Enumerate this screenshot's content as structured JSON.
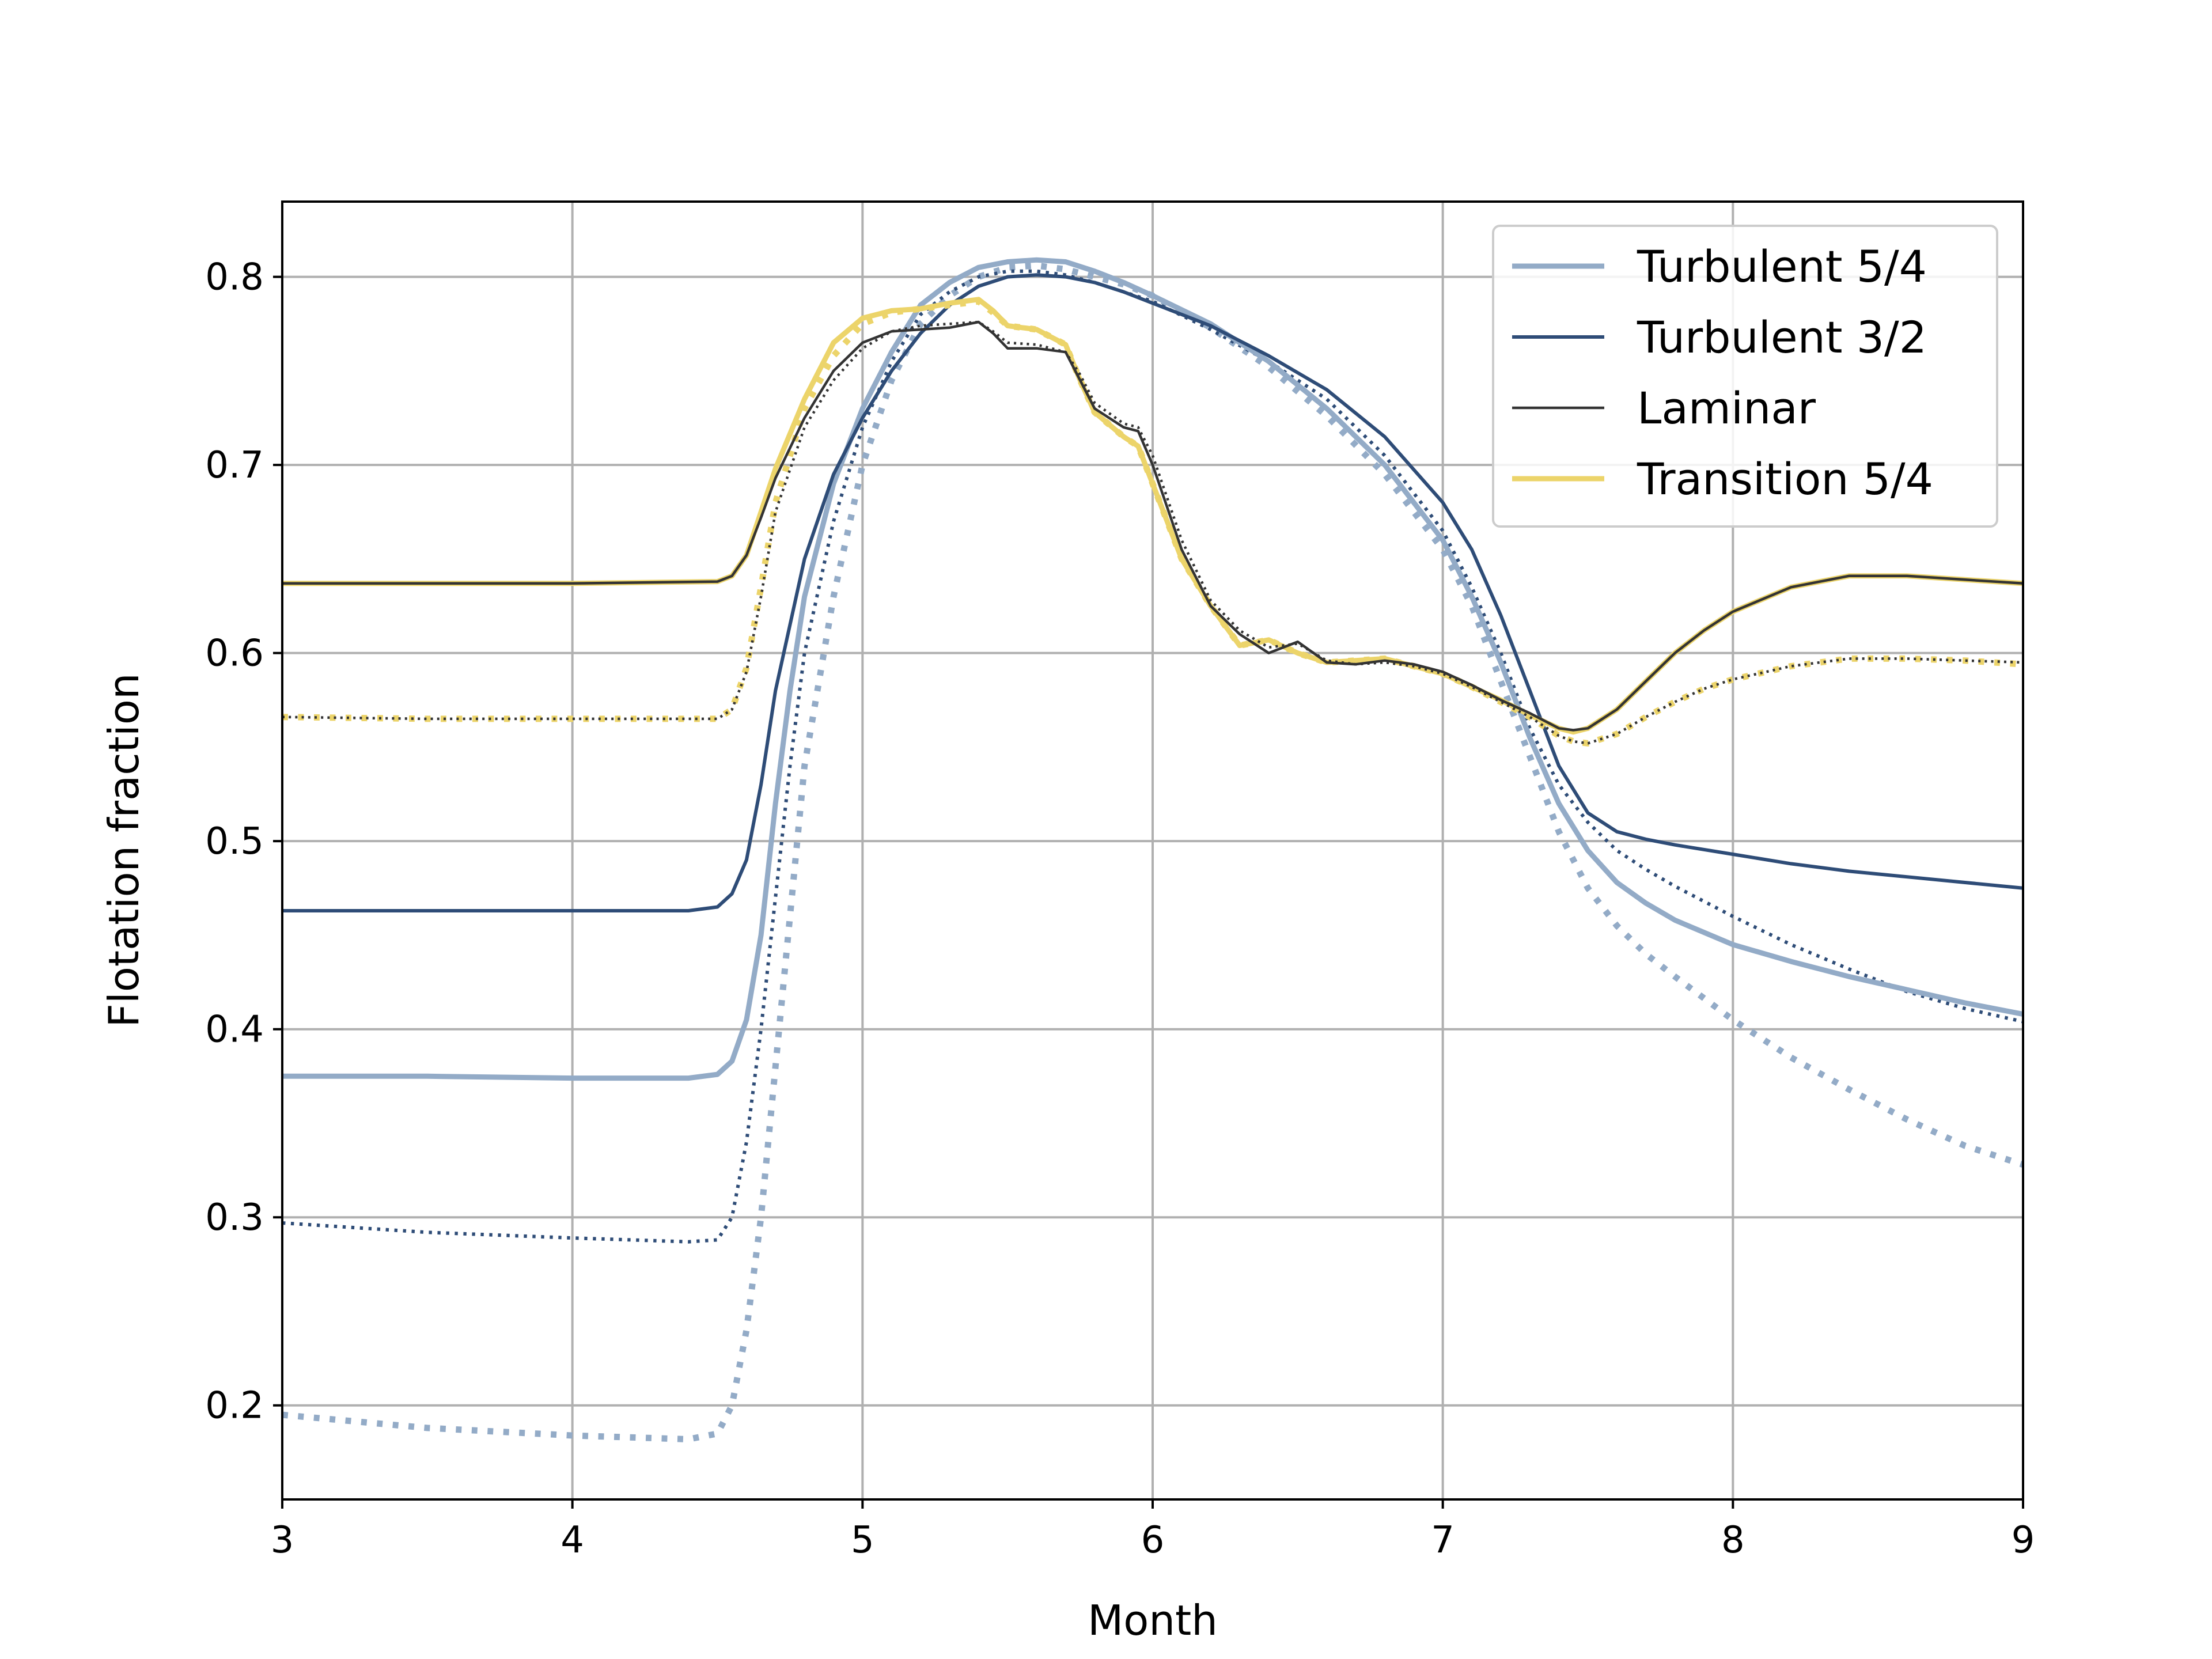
{
  "chart_data": {
    "type": "line",
    "title": "",
    "xlabel": "Month",
    "ylabel": "Flotation fraction",
    "xlim": [
      3,
      9
    ],
    "ylim": [
      0.15,
      0.84
    ],
    "xticks": [
      3,
      4,
      5,
      6,
      7,
      8,
      9
    ],
    "yticks": [
      0.2,
      0.3,
      0.4,
      0.5,
      0.6,
      0.7,
      0.8
    ],
    "xtick_labels": [
      "3",
      "4",
      "5",
      "6",
      "7",
      "8",
      "9"
    ],
    "ytick_labels": [
      "0.2",
      "0.3",
      "0.4",
      "0.5",
      "0.6",
      "0.7",
      "0.8"
    ],
    "grid": true,
    "legend_position": "top-right",
    "colors": {
      "turbulent_54": "#93abc7",
      "turbulent_32": "#2e4c77",
      "laminar": "#333333",
      "transition_54": "#ecd46a",
      "grid": "#b0b0b0",
      "axes": "#000000"
    },
    "series": [
      {
        "name": "Turbulent 5/4",
        "key": "turbulent_54",
        "style": "solid",
        "x": [
          3.0,
          3.5,
          4.0,
          4.4,
          4.5,
          4.55,
          4.6,
          4.65,
          4.7,
          4.75,
          4.8,
          4.9,
          5.0,
          5.1,
          5.2,
          5.3,
          5.4,
          5.5,
          5.6,
          5.7,
          5.8,
          5.9,
          6.0,
          6.2,
          6.4,
          6.6,
          6.8,
          7.0,
          7.1,
          7.2,
          7.3,
          7.4,
          7.5,
          7.6,
          7.7,
          7.8,
          8.0,
          8.2,
          8.4,
          8.6,
          8.8,
          9.0
        ],
        "y": [
          0.375,
          0.375,
          0.374,
          0.374,
          0.376,
          0.383,
          0.405,
          0.45,
          0.52,
          0.58,
          0.63,
          0.69,
          0.73,
          0.76,
          0.785,
          0.797,
          0.805,
          0.808,
          0.809,
          0.808,
          0.803,
          0.797,
          0.79,
          0.775,
          0.755,
          0.73,
          0.7,
          0.66,
          0.63,
          0.595,
          0.555,
          0.52,
          0.495,
          0.478,
          0.467,
          0.458,
          0.445,
          0.436,
          0.428,
          0.421,
          0.414,
          0.408
        ]
      },
      {
        "name": "Turbulent 3/2",
        "key": "turbulent_32",
        "style": "solid",
        "x": [
          3.0,
          3.5,
          4.0,
          4.4,
          4.5,
          4.55,
          4.6,
          4.65,
          4.7,
          4.8,
          4.9,
          5.0,
          5.1,
          5.2,
          5.3,
          5.4,
          5.5,
          5.6,
          5.7,
          5.8,
          5.9,
          6.0,
          6.2,
          6.4,
          6.6,
          6.8,
          7.0,
          7.1,
          7.2,
          7.3,
          7.4,
          7.5,
          7.6,
          7.7,
          7.8,
          8.0,
          8.2,
          8.4,
          8.6,
          8.8,
          9.0
        ],
        "y": [
          0.463,
          0.463,
          0.463,
          0.463,
          0.465,
          0.472,
          0.49,
          0.53,
          0.58,
          0.65,
          0.695,
          0.725,
          0.75,
          0.77,
          0.785,
          0.795,
          0.8,
          0.801,
          0.8,
          0.797,
          0.792,
          0.786,
          0.774,
          0.758,
          0.74,
          0.715,
          0.68,
          0.655,
          0.62,
          0.58,
          0.54,
          0.515,
          0.505,
          0.501,
          0.498,
          0.493,
          0.488,
          0.484,
          0.481,
          0.478,
          0.475
        ]
      },
      {
        "name": "Laminar",
        "key": "laminar",
        "style": "solid",
        "x": [
          3.0,
          3.5,
          4.0,
          4.5,
          4.55,
          4.6,
          4.65,
          4.7,
          4.8,
          4.9,
          5.0,
          5.1,
          5.2,
          5.3,
          5.4,
          5.45,
          5.5,
          5.6,
          5.7,
          5.75,
          5.8,
          5.9,
          5.95,
          6.0,
          6.1,
          6.2,
          6.3,
          6.4,
          6.5,
          6.6,
          6.7,
          6.8,
          6.9,
          7.0,
          7.1,
          7.2,
          7.3,
          7.4,
          7.45,
          7.5,
          7.6,
          7.7,
          7.8,
          7.9,
          8.0,
          8.2,
          8.4,
          8.6,
          8.8,
          9.0
        ],
        "y": [
          0.637,
          0.637,
          0.637,
          0.638,
          0.641,
          0.652,
          0.672,
          0.693,
          0.725,
          0.75,
          0.765,
          0.771,
          0.772,
          0.773,
          0.776,
          0.77,
          0.762,
          0.762,
          0.76,
          0.745,
          0.73,
          0.72,
          0.718,
          0.7,
          0.655,
          0.625,
          0.61,
          0.6,
          0.606,
          0.595,
          0.594,
          0.596,
          0.594,
          0.59,
          0.583,
          0.575,
          0.568,
          0.56,
          0.559,
          0.56,
          0.57,
          0.585,
          0.6,
          0.612,
          0.622,
          0.635,
          0.641,
          0.641,
          0.639,
          0.637
        ]
      },
      {
        "name": "Transition 5/4",
        "key": "transition_54",
        "style": "solid",
        "x": [
          3.0,
          3.5,
          4.0,
          4.5,
          4.55,
          4.6,
          4.65,
          4.7,
          4.8,
          4.9,
          5.0,
          5.1,
          5.2,
          5.3,
          5.4,
          5.45,
          5.5,
          5.6,
          5.7,
          5.75,
          5.8,
          5.9,
          5.95,
          6.0,
          6.1,
          6.2,
          6.3,
          6.4,
          6.5,
          6.6,
          6.7,
          6.8,
          6.9,
          7.0,
          7.1,
          7.2,
          7.3,
          7.4,
          7.45,
          7.5,
          7.6,
          7.7,
          7.8,
          7.9,
          8.0,
          8.2,
          8.4,
          8.6,
          8.8,
          9.0
        ],
        "y": [
          0.637,
          0.637,
          0.637,
          0.638,
          0.641,
          0.652,
          0.675,
          0.698,
          0.735,
          0.765,
          0.778,
          0.782,
          0.783,
          0.786,
          0.788,
          0.782,
          0.774,
          0.772,
          0.764,
          0.745,
          0.728,
          0.715,
          0.71,
          0.69,
          0.65,
          0.625,
          0.604,
          0.607,
          0.6,
          0.595,
          0.596,
          0.597,
          0.593,
          0.589,
          0.582,
          0.575,
          0.567,
          0.56,
          0.558,
          0.56,
          0.57,
          0.585,
          0.6,
          0.612,
          0.622,
          0.635,
          0.641,
          0.641,
          0.639,
          0.637
        ]
      },
      {
        "name": "",
        "key": "turbulent_54",
        "style": "dotted",
        "x": [
          3.0,
          3.5,
          4.0,
          4.4,
          4.5,
          4.55,
          4.6,
          4.65,
          4.7,
          4.75,
          4.8,
          4.9,
          5.0,
          5.1,
          5.2,
          5.3,
          5.4,
          5.5,
          5.6,
          5.7,
          5.8,
          5.9,
          6.0,
          6.2,
          6.4,
          6.6,
          6.8,
          7.0,
          7.1,
          7.2,
          7.3,
          7.4,
          7.5,
          7.6,
          7.7,
          7.8,
          8.0,
          8.2,
          8.4,
          8.6,
          8.8,
          9.0
        ],
        "y": [
          0.195,
          0.188,
          0.184,
          0.182,
          0.185,
          0.2,
          0.24,
          0.3,
          0.38,
          0.46,
          0.54,
          0.63,
          0.7,
          0.745,
          0.775,
          0.79,
          0.8,
          0.805,
          0.806,
          0.804,
          0.8,
          0.796,
          0.79,
          0.773,
          0.752,
          0.726,
          0.695,
          0.655,
          0.625,
          0.585,
          0.545,
          0.505,
          0.475,
          0.455,
          0.44,
          0.428,
          0.405,
          0.385,
          0.368,
          0.352,
          0.338,
          0.328
        ]
      },
      {
        "name": "",
        "key": "turbulent_32",
        "style": "dotted",
        "x": [
          3.0,
          3.5,
          4.0,
          4.4,
          4.5,
          4.55,
          4.6,
          4.65,
          4.7,
          4.75,
          4.8,
          4.9,
          5.0,
          5.1,
          5.2,
          5.3,
          5.4,
          5.5,
          5.6,
          5.7,
          5.8,
          5.9,
          6.0,
          6.2,
          6.4,
          6.6,
          6.8,
          7.0,
          7.1,
          7.2,
          7.3,
          7.4,
          7.5,
          7.6,
          7.7,
          7.8,
          8.0,
          8.2,
          8.4,
          8.6,
          8.8,
          9.0
        ],
        "y": [
          0.297,
          0.292,
          0.289,
          0.287,
          0.288,
          0.3,
          0.34,
          0.4,
          0.47,
          0.54,
          0.6,
          0.67,
          0.72,
          0.755,
          0.78,
          0.792,
          0.8,
          0.803,
          0.803,
          0.801,
          0.797,
          0.792,
          0.787,
          0.772,
          0.755,
          0.735,
          0.705,
          0.665,
          0.635,
          0.6,
          0.56,
          0.53,
          0.51,
          0.495,
          0.485,
          0.476,
          0.46,
          0.445,
          0.432,
          0.42,
          0.411,
          0.404
        ]
      },
      {
        "name": "",
        "key": "laminar",
        "style": "dotted",
        "x": [
          3.0,
          3.5,
          4.0,
          4.5,
          4.55,
          4.6,
          4.65,
          4.7,
          4.8,
          4.9,
          5.0,
          5.1,
          5.2,
          5.3,
          5.4,
          5.45,
          5.5,
          5.6,
          5.7,
          5.75,
          5.8,
          5.9,
          5.95,
          6.0,
          6.1,
          6.2,
          6.3,
          6.4,
          6.5,
          6.6,
          6.7,
          6.8,
          6.9,
          7.0,
          7.1,
          7.2,
          7.3,
          7.4,
          7.45,
          7.5,
          7.6,
          7.7,
          7.8,
          7.9,
          8.0,
          8.2,
          8.4,
          8.6,
          8.8,
          9.0
        ],
        "y": [
          0.566,
          0.565,
          0.565,
          0.565,
          0.57,
          0.59,
          0.63,
          0.675,
          0.72,
          0.745,
          0.762,
          0.771,
          0.774,
          0.775,
          0.776,
          0.771,
          0.765,
          0.764,
          0.76,
          0.748,
          0.733,
          0.722,
          0.72,
          0.705,
          0.66,
          0.628,
          0.612,
          0.603,
          0.605,
          0.596,
          0.594,
          0.595,
          0.593,
          0.589,
          0.582,
          0.574,
          0.566,
          0.556,
          0.553,
          0.552,
          0.557,
          0.566,
          0.574,
          0.581,
          0.586,
          0.593,
          0.597,
          0.597,
          0.596,
          0.595
        ]
      },
      {
        "name": "",
        "key": "transition_54",
        "style": "dotted",
        "x": [
          3.0,
          3.5,
          4.0,
          4.5,
          4.55,
          4.6,
          4.65,
          4.7,
          4.8,
          4.9,
          5.0,
          5.1,
          5.2,
          5.3,
          5.4,
          5.45,
          5.5,
          5.6,
          5.7,
          5.75,
          5.8,
          5.9,
          5.95,
          6.0,
          6.1,
          6.2,
          6.3,
          6.4,
          6.5,
          6.6,
          6.7,
          6.8,
          6.9,
          7.0,
          7.1,
          7.2,
          7.3,
          7.4,
          7.45,
          7.5,
          7.6,
          7.7,
          7.8,
          7.9,
          8.0,
          8.2,
          8.4,
          8.6,
          8.8,
          9.0
        ],
        "y": [
          0.566,
          0.565,
          0.565,
          0.565,
          0.57,
          0.592,
          0.635,
          0.68,
          0.73,
          0.758,
          0.775,
          0.781,
          0.783,
          0.785,
          0.787,
          0.781,
          0.774,
          0.772,
          0.764,
          0.745,
          0.728,
          0.715,
          0.71,
          0.69,
          0.65,
          0.625,
          0.604,
          0.607,
          0.6,
          0.595,
          0.596,
          0.597,
          0.593,
          0.589,
          0.582,
          0.574,
          0.566,
          0.556,
          0.553,
          0.552,
          0.557,
          0.566,
          0.574,
          0.581,
          0.586,
          0.593,
          0.597,
          0.597,
          0.596,
          0.594
        ]
      }
    ]
  }
}
